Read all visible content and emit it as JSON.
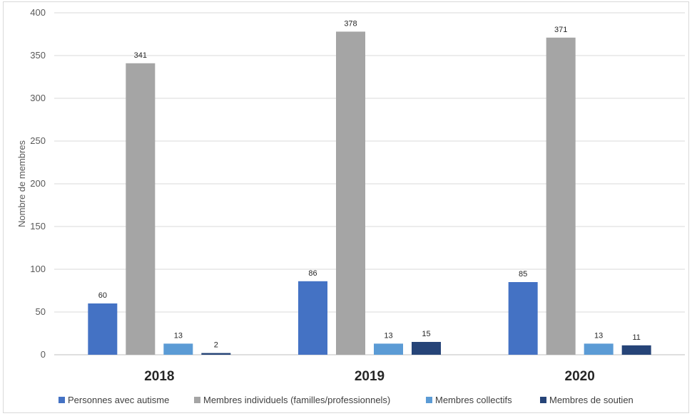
{
  "chart_data": {
    "type": "bar",
    "categories": [
      "2018",
      "2019",
      "2020"
    ],
    "series": [
      {
        "name": "Personnes avec autisme",
        "values": [
          60,
          86,
          85
        ],
        "color": "#4472c4"
      },
      {
        "name": "Membres individuels (familles/professionnels)",
        "values": [
          341,
          378,
          371
        ],
        "color": "#a5a5a5"
      },
      {
        "name": "Membres collectifs",
        "values": [
          13,
          13,
          13
        ],
        "color": "#5b9bd5"
      },
      {
        "name": "Membres de soutien",
        "values": [
          2,
          15,
          11
        ],
        "color": "#264478"
      }
    ],
    "title": "",
    "xlabel": "",
    "ylabel": "Nombre de membres",
    "ylim": [
      0,
      400
    ],
    "yticks": [
      0,
      50,
      100,
      150,
      200,
      250,
      300,
      350,
      400
    ],
    "grid": true,
    "legend_position": "bottom",
    "data_labels": true
  }
}
